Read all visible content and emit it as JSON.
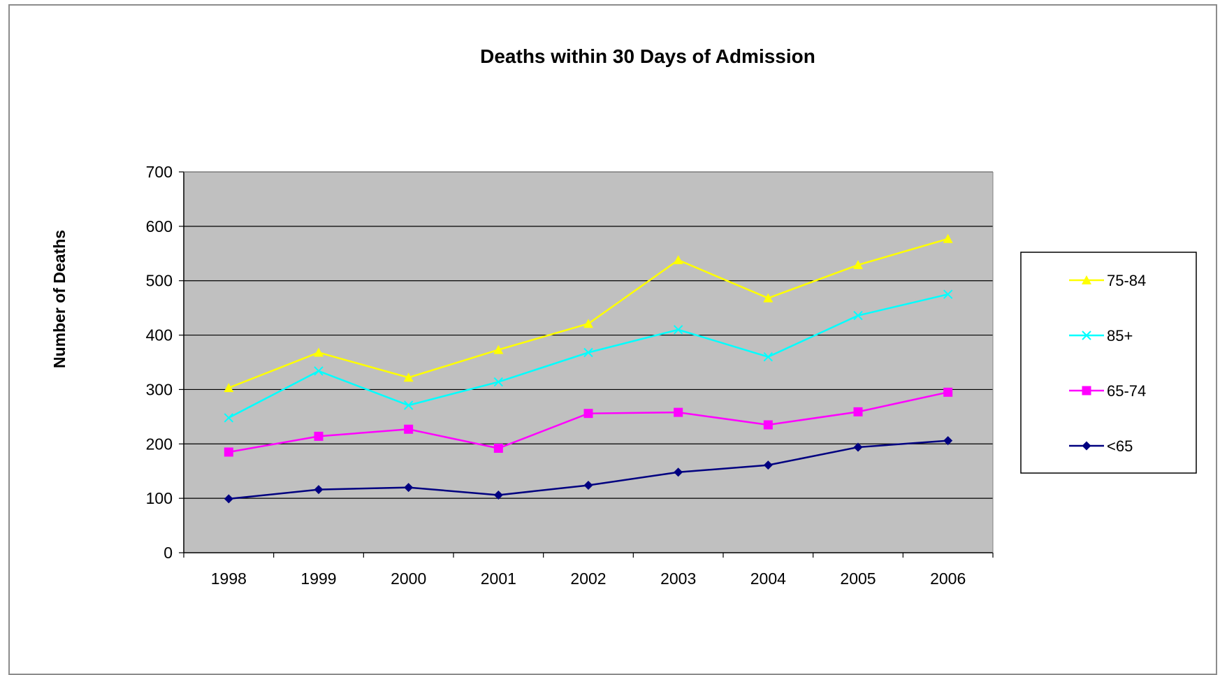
{
  "chart_data": {
    "type": "line",
    "title": "Deaths within 30 Days of Admission",
    "xlabel": "",
    "ylabel": "Number of Deaths",
    "categories": [
      "1998",
      "1999",
      "2000",
      "2001",
      "2002",
      "2003",
      "2004",
      "2005",
      "2006"
    ],
    "ylim": [
      0,
      700
    ],
    "yticks": [
      0,
      100,
      200,
      300,
      400,
      500,
      600,
      700
    ],
    "grid": true,
    "plot_background": "#c0c0c0",
    "legend_position": "right",
    "series": [
      {
        "name": "75-84",
        "color": "#ffff00",
        "marker": "triangle",
        "values": [
          303,
          368,
          322,
          373,
          421,
          538,
          468,
          529,
          577
        ]
      },
      {
        "name": "85+",
        "color": "#00ffff",
        "marker": "x",
        "values": [
          248,
          334,
          271,
          314,
          368,
          410,
          360,
          436,
          475
        ]
      },
      {
        "name": "65-74",
        "color": "#ff00ff",
        "marker": "square",
        "values": [
          185,
          214,
          227,
          192,
          256,
          258,
          235,
          259,
          295
        ]
      },
      {
        "name": "<65",
        "color": "#000080",
        "marker": "diamond",
        "values": [
          99,
          116,
          120,
          106,
          124,
          148,
          161,
          194,
          206
        ]
      }
    ]
  }
}
